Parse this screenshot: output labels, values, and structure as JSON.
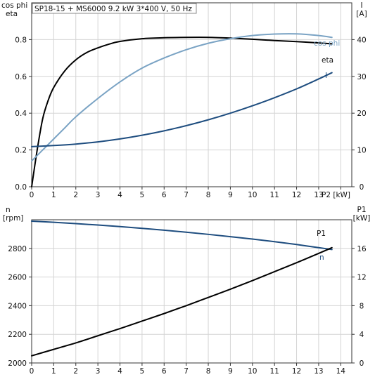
{
  "chart_data": [
    {
      "type": "line",
      "title": "SP18-15 + MS6000   9.2 kW   3*400 V, 50 Hz",
      "xlabel": "P2 [kW]",
      "x_unit": "[kW]",
      "xlim": [
        0,
        14.5
      ],
      "x_ticks": [
        0,
        1,
        2,
        3,
        4,
        5,
        6,
        7,
        8,
        9,
        10,
        11,
        12,
        13,
        14
      ],
      "ylabel_left": [
        "cos phi",
        "eta"
      ],
      "ylim_left": [
        0,
        1.0
      ],
      "y_ticks_left": [
        0.0,
        0.2,
        0.4,
        0.6,
        0.8
      ],
      "ylabel_right": [
        "I",
        "[A]"
      ],
      "ylim_right": [
        0,
        50
      ],
      "y_ticks_right": [
        0,
        10,
        20,
        30,
        40
      ],
      "grid": true,
      "series": [
        {
          "name": "eta",
          "axis": "left",
          "color": "#000000",
          "x": [
            0,
            0.25,
            0.5,
            0.75,
            1,
            1.5,
            2,
            2.5,
            3,
            3.5,
            4,
            5,
            6,
            7,
            8,
            9,
            10,
            11,
            12,
            13,
            13.6
          ],
          "y": [
            0,
            0.2,
            0.37,
            0.47,
            0.54,
            0.63,
            0.69,
            0.73,
            0.755,
            0.775,
            0.79,
            0.805,
            0.81,
            0.812,
            0.812,
            0.808,
            0.802,
            0.795,
            0.789,
            0.782,
            0.777
          ]
        },
        {
          "name": "cos phi",
          "axis": "left",
          "color": "#7aa3c4",
          "x": [
            0,
            0.5,
            1,
            1.5,
            2,
            3,
            4,
            5,
            6,
            7,
            8,
            9,
            10,
            11,
            12,
            13,
            13.6
          ],
          "y": [
            0.14,
            0.2,
            0.26,
            0.32,
            0.38,
            0.48,
            0.57,
            0.645,
            0.7,
            0.745,
            0.78,
            0.805,
            0.822,
            0.83,
            0.831,
            0.822,
            0.812
          ]
        },
        {
          "name": "I",
          "axis": "right",
          "color": "#1e4d7f",
          "x": [
            0,
            1,
            2,
            3,
            4,
            5,
            6,
            7,
            8,
            9,
            10,
            11,
            12,
            13,
            13.6
          ],
          "y": [
            10.9,
            11.2,
            11.6,
            12.2,
            13.0,
            14.0,
            15.2,
            16.6,
            18.2,
            20.0,
            22.0,
            24.2,
            26.6,
            29.3,
            31.0
          ]
        }
      ]
    },
    {
      "type": "line",
      "xlim": [
        0,
        14.5
      ],
      "x_ticks": [
        0,
        1,
        2,
        3,
        4,
        5,
        6,
        7,
        8,
        9,
        10,
        11,
        12,
        13,
        14
      ],
      "ylabel_left": [
        "n",
        "[rpm]"
      ],
      "ylim_left": [
        2000,
        3000
      ],
      "y_ticks_left": [
        2000,
        2200,
        2400,
        2600,
        2800
      ],
      "ylabel_right": [
        "P1",
        "[kW]"
      ],
      "ylim_right": [
        0,
        20
      ],
      "y_ticks_right": [
        0,
        4,
        8,
        12,
        16
      ],
      "grid": true,
      "series": [
        {
          "name": "n",
          "axis": "left",
          "color": "#1e4d7f",
          "x": [
            0,
            1,
            2,
            3,
            4,
            5,
            6,
            7,
            8,
            9,
            10,
            11,
            12,
            13,
            13.6
          ],
          "y": [
            2990,
            2982,
            2973,
            2963,
            2952,
            2940,
            2927,
            2913,
            2898,
            2882,
            2865,
            2847,
            2827,
            2805,
            2792
          ]
        },
        {
          "name": "P1",
          "axis": "right",
          "color": "#000000",
          "x": [
            0,
            1,
            2,
            3,
            4,
            5,
            6,
            7,
            8,
            9,
            10,
            11,
            12,
            13,
            13.6
          ],
          "y": [
            1.0,
            1.9,
            2.8,
            3.8,
            4.8,
            5.85,
            6.9,
            8.0,
            9.15,
            10.3,
            11.5,
            12.75,
            14.0,
            15.3,
            16.1
          ]
        }
      ]
    }
  ]
}
